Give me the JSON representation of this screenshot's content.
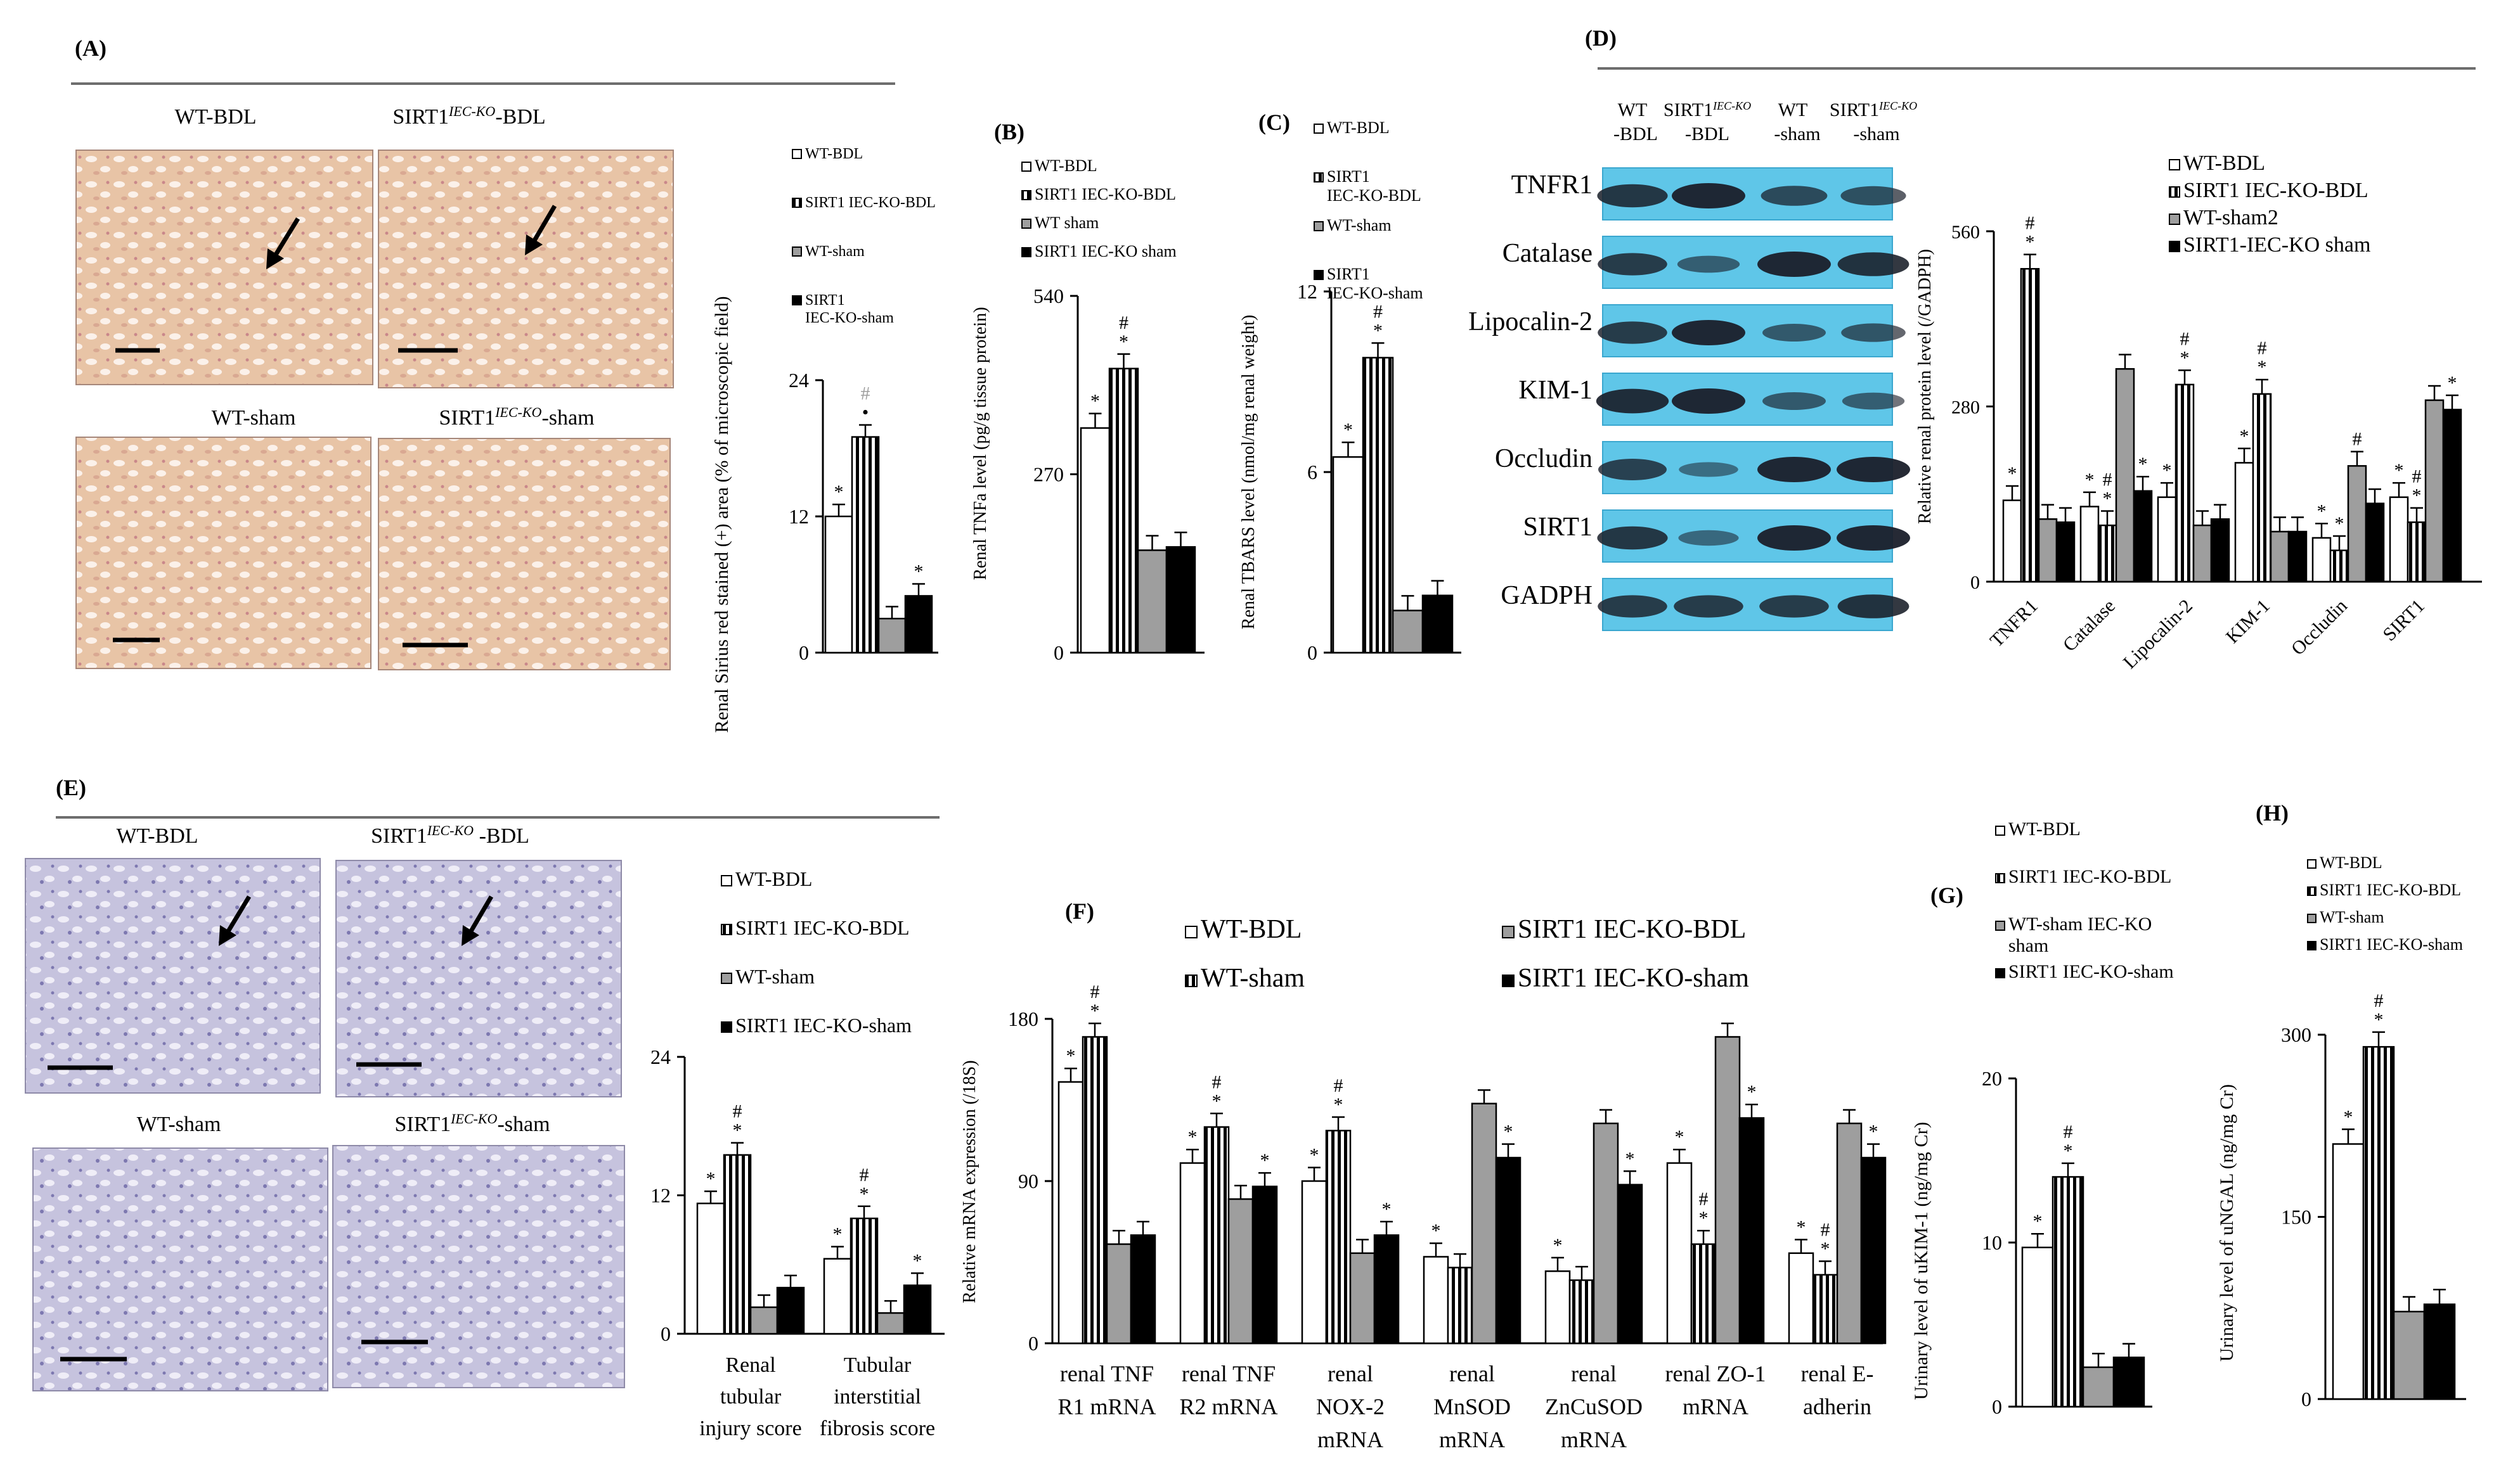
{
  "figure": {
    "panelA": {
      "label": "(A)",
      "micrographs": [
        {
          "label_main": "WT-BDL",
          "label_sup": "",
          "label_suffix": ""
        },
        {
          "label_main": "SIRT1",
          "label_sup": "IEC-KO",
          "label_suffix": "-BDL"
        },
        {
          "label_main": "WT-sham",
          "label_sup": "",
          "label_suffix": ""
        },
        {
          "label_main": "SIRT1",
          "label_sup": "IEC-KO",
          "label_suffix": "-sham"
        }
      ]
    },
    "panelB": {
      "label": "(B)"
    },
    "panelC": {
      "label": "(C)"
    },
    "panelD": {
      "label": "(D)",
      "lane_labels": [
        {
          "line1": "WT",
          "line2": "-BDL"
        },
        {
          "line1": "SIRT1",
          "sup": "IEC-KO",
          "line2": "-BDL"
        },
        {
          "line1": "WT",
          "line2": "-sham"
        },
        {
          "line1": "SIRT1",
          "sup": "IEC-KO",
          "line2": "-sham"
        }
      ],
      "blot_rows": [
        "TNFR1",
        "Catalase",
        "Lipocalin-2",
        "KIM-1",
        "Occludin",
        "SIRT1",
        "GADPH"
      ]
    },
    "panelE": {
      "label": "(E)",
      "micrographs": [
        {
          "label_main": "WT-BDL",
          "label_sup": "",
          "label_suffix": ""
        },
        {
          "label_main": "SIRT1",
          "label_sup": "IEC-KO",
          "label_suffix": " -BDL"
        },
        {
          "label_main": "WT-sham",
          "label_sup": "",
          "label_suffix": ""
        },
        {
          "label_main": "SIRT1",
          "label_sup": "IEC-KO",
          "label_suffix": "-sham"
        }
      ]
    },
    "panelF": {
      "label": "(F)"
    },
    "panelG": {
      "label": "(G)"
    },
    "panelH": {
      "label": "(H)"
    }
  },
  "colors": {
    "sham": "#9e9e9e",
    "ko_sham": "#000000",
    "stain_a": "#e8c4a6",
    "stain_e": "#c6c3de"
  },
  "chart_data": [
    {
      "id": "A",
      "type": "bar",
      "ylabel": "Renal Sirius red stained (+) area (% of microscopic field)",
      "ylim": [
        0,
        24
      ],
      "yticks": [
        "0",
        "12",
        "24"
      ],
      "legend": [
        "WT-BDL",
        "SIRT1 IEC-KO-BDL",
        "WT-sham",
        "SIRT1 IEC-KO-sham"
      ],
      "groups": [
        {
          "label": "",
          "values": [
            12,
            19,
            3,
            5
          ],
          "marks": [
            [
              "*"
            ],
            [
              "•",
              "#"
            ],
            [],
            [
              "*"
            ]
          ]
        }
      ]
    },
    {
      "id": "B",
      "type": "bar",
      "ylabel": "Renal TNFa level (pg/g tissue protein)",
      "ylim": [
        0,
        540
      ],
      "yticks": [
        "0",
        "270",
        "540"
      ],
      "legend": [
        "WT-BDL",
        "SIRT1 IEC-KO-BDL",
        "WT sham",
        "SIRT1 IEC-KO sham"
      ],
      "groups": [
        {
          "label": "",
          "values": [
            340,
            430,
            155,
            160
          ],
          "marks": [
            [
              "*"
            ],
            [
              "*",
              "#"
            ],
            [],
            []
          ]
        }
      ]
    },
    {
      "id": "C",
      "type": "bar",
      "ylabel": "Renal TBARS level (nmol/mg renal weight)",
      "ylim": [
        0,
        12
      ],
      "yticks": [
        "0",
        "6",
        "12"
      ],
      "legend": [
        "WT-BDL",
        "SIRT1 IEC-KO-BDL",
        "WT-sham",
        "SIRT1 IEC-KO-sham"
      ],
      "groups": [
        {
          "label": "",
          "values": [
            6.5,
            9.8,
            1.4,
            1.9
          ],
          "marks": [
            [
              "*"
            ],
            [
              "*",
              "#"
            ],
            [],
            []
          ]
        }
      ]
    },
    {
      "id": "D",
      "type": "bar",
      "ylabel": "Relative renal protein level (/GADPH)",
      "ylim": [
        0,
        560
      ],
      "yticks": [
        "0",
        "280",
        "560"
      ],
      "legend": [
        "WT-BDL",
        "SIRT1 IEC-KO-BDL",
        "WT-sham2",
        "SIRT1-IEC-KO sham"
      ],
      "groups": [
        {
          "label": "TNFR1",
          "values": [
            130,
            500,
            100,
            95
          ],
          "marks": [
            [
              "*"
            ],
            [
              "*",
              "#"
            ],
            [],
            []
          ]
        },
        {
          "label": "Catalase",
          "values": [
            120,
            90,
            340,
            145
          ],
          "marks": [
            [
              "*"
            ],
            [
              "*",
              "#"
            ],
            [],
            [
              "*"
            ]
          ]
        },
        {
          "label": "Lipocalin-2",
          "values": [
            135,
            315,
            90,
            100
          ],
          "marks": [
            [
              "*"
            ],
            [
              "*",
              "#"
            ],
            [],
            []
          ]
        },
        {
          "label": "KIM-1",
          "values": [
            190,
            300,
            80,
            80
          ],
          "marks": [
            [
              "*"
            ],
            [
              "*",
              "#"
            ],
            [],
            []
          ]
        },
        {
          "label": "Occludin",
          "values": [
            70,
            50,
            185,
            125
          ],
          "marks": [
            [
              "*"
            ],
            [
              "*"
            ],
            [
              "#"
            ],
            []
          ]
        },
        {
          "label": "SIRT1",
          "values": [
            135,
            95,
            290,
            275
          ],
          "marks": [
            [
              "*"
            ],
            [
              "*",
              "#"
            ],
            [],
            [
              "*"
            ]
          ]
        }
      ]
    },
    {
      "id": "E",
      "type": "bar",
      "ylabel": "",
      "ylim": [
        0,
        24
      ],
      "yticks": [
        "0",
        "12",
        "24"
      ],
      "legend": [
        "WT-BDL",
        "SIRT1 IEC-KO-BDL",
        "WT-sham",
        "SIRT1 IEC-KO-sham"
      ],
      "groups": [
        {
          "label_lines": [
            "Renal",
            "tubular",
            "injury score"
          ],
          "values": [
            11.3,
            15.5,
            2.3,
            4
          ],
          "marks": [
            [
              "*"
            ],
            [
              "*",
              "#"
            ],
            [],
            []
          ]
        },
        {
          "label_lines": [
            "Tubular",
            "interstitial",
            "fibrosis score"
          ],
          "values": [
            6.5,
            10,
            1.8,
            4.2
          ],
          "marks": [
            [
              "*"
            ],
            [
              "*",
              "#"
            ],
            [],
            [
              "*"
            ]
          ]
        }
      ]
    },
    {
      "id": "F",
      "type": "bar",
      "ylabel": "Relative mRNA expression (/18S)",
      "ylim": [
        0,
        180
      ],
      "yticks": [
        "0",
        "90",
        "180"
      ],
      "legend": [
        "WT-BDL",
        "WT-sham",
        "SIRT1 IEC-KO-BDL",
        "SIRT1 IEC-KO-sham"
      ],
      "groups": [
        {
          "label_lines": [
            "renal TNF",
            "R1 mRNA"
          ],
          "values": [
            145,
            170,
            55,
            60
          ],
          "marks": [
            [
              "*"
            ],
            [
              "*",
              "#"
            ],
            [],
            []
          ]
        },
        {
          "label_lines": [
            "renal TNF",
            "R2 mRNA"
          ],
          "values": [
            100,
            120,
            80,
            87
          ],
          "marks": [
            [
              "*"
            ],
            [
              "*",
              "#"
            ],
            [],
            [
              "*"
            ]
          ]
        },
        {
          "label_lines": [
            "renal",
            "NOX-2",
            "mRNA"
          ],
          "values": [
            90,
            118,
            50,
            60
          ],
          "marks": [
            [
              "*"
            ],
            [
              "*",
              "#"
            ],
            [],
            [
              "*"
            ]
          ]
        },
        {
          "label_lines": [
            "renal",
            "MnSOD",
            "mRNA"
          ],
          "values": [
            48,
            42,
            133,
            103
          ],
          "marks": [
            [
              "*"
            ],
            [],
            [],
            [
              "*"
            ]
          ]
        },
        {
          "label_lines": [
            "renal",
            "ZnCuSOD",
            "mRNA"
          ],
          "values": [
            40,
            35,
            122,
            88
          ],
          "marks": [
            [
              "*"
            ],
            [],
            [],
            [
              "*"
            ]
          ]
        },
        {
          "label_lines": [
            "renal ZO-1",
            "mRNA"
          ],
          "values": [
            100,
            55,
            170,
            125
          ],
          "marks": [
            [
              "*"
            ],
            [
              "*",
              "#"
            ],
            [],
            [
              "*"
            ]
          ]
        },
        {
          "label_lines": [
            "renal E-",
            "adherin"
          ],
          "values": [
            50,
            38,
            122,
            103
          ],
          "marks": [
            [
              "*"
            ],
            [
              "*",
              "#"
            ],
            [],
            [
              "*"
            ]
          ]
        }
      ]
    },
    {
      "id": "G",
      "type": "bar",
      "ylabel": "Urinary level of uKIM-1 (ng/mg Cr)",
      "ylim": [
        0,
        20
      ],
      "yticks": [
        "0",
        "10",
        "20"
      ],
      "legend": [
        "WT-BDL",
        "SIRT1 IEC-KO-BDL",
        "WT-sham IEC-KO sham",
        "SIRT1 IEC-KO-sham"
      ],
      "groups": [
        {
          "label": "",
          "values": [
            9.7,
            14,
            2.4,
            3
          ],
          "marks": [
            [
              "*"
            ],
            [
              "*",
              "#"
            ],
            [],
            []
          ]
        }
      ]
    },
    {
      "id": "H",
      "type": "bar",
      "ylabel": "Urinary level of uNGAL (ng/mg Cr)",
      "ylim": [
        0,
        300
      ],
      "yticks": [
        "0",
        "150",
        "300"
      ],
      "legend": [
        "WT-BDL",
        "SIRT1 IEC-KO-BDL",
        "WT-sham",
        "SIRT1 IEC-KO-sham"
      ],
      "groups": [
        {
          "label": "",
          "values": [
            210,
            290,
            72,
            78
          ],
          "marks": [
            [
              "*"
            ],
            [
              "*",
              "#"
            ],
            [],
            []
          ]
        }
      ]
    }
  ]
}
